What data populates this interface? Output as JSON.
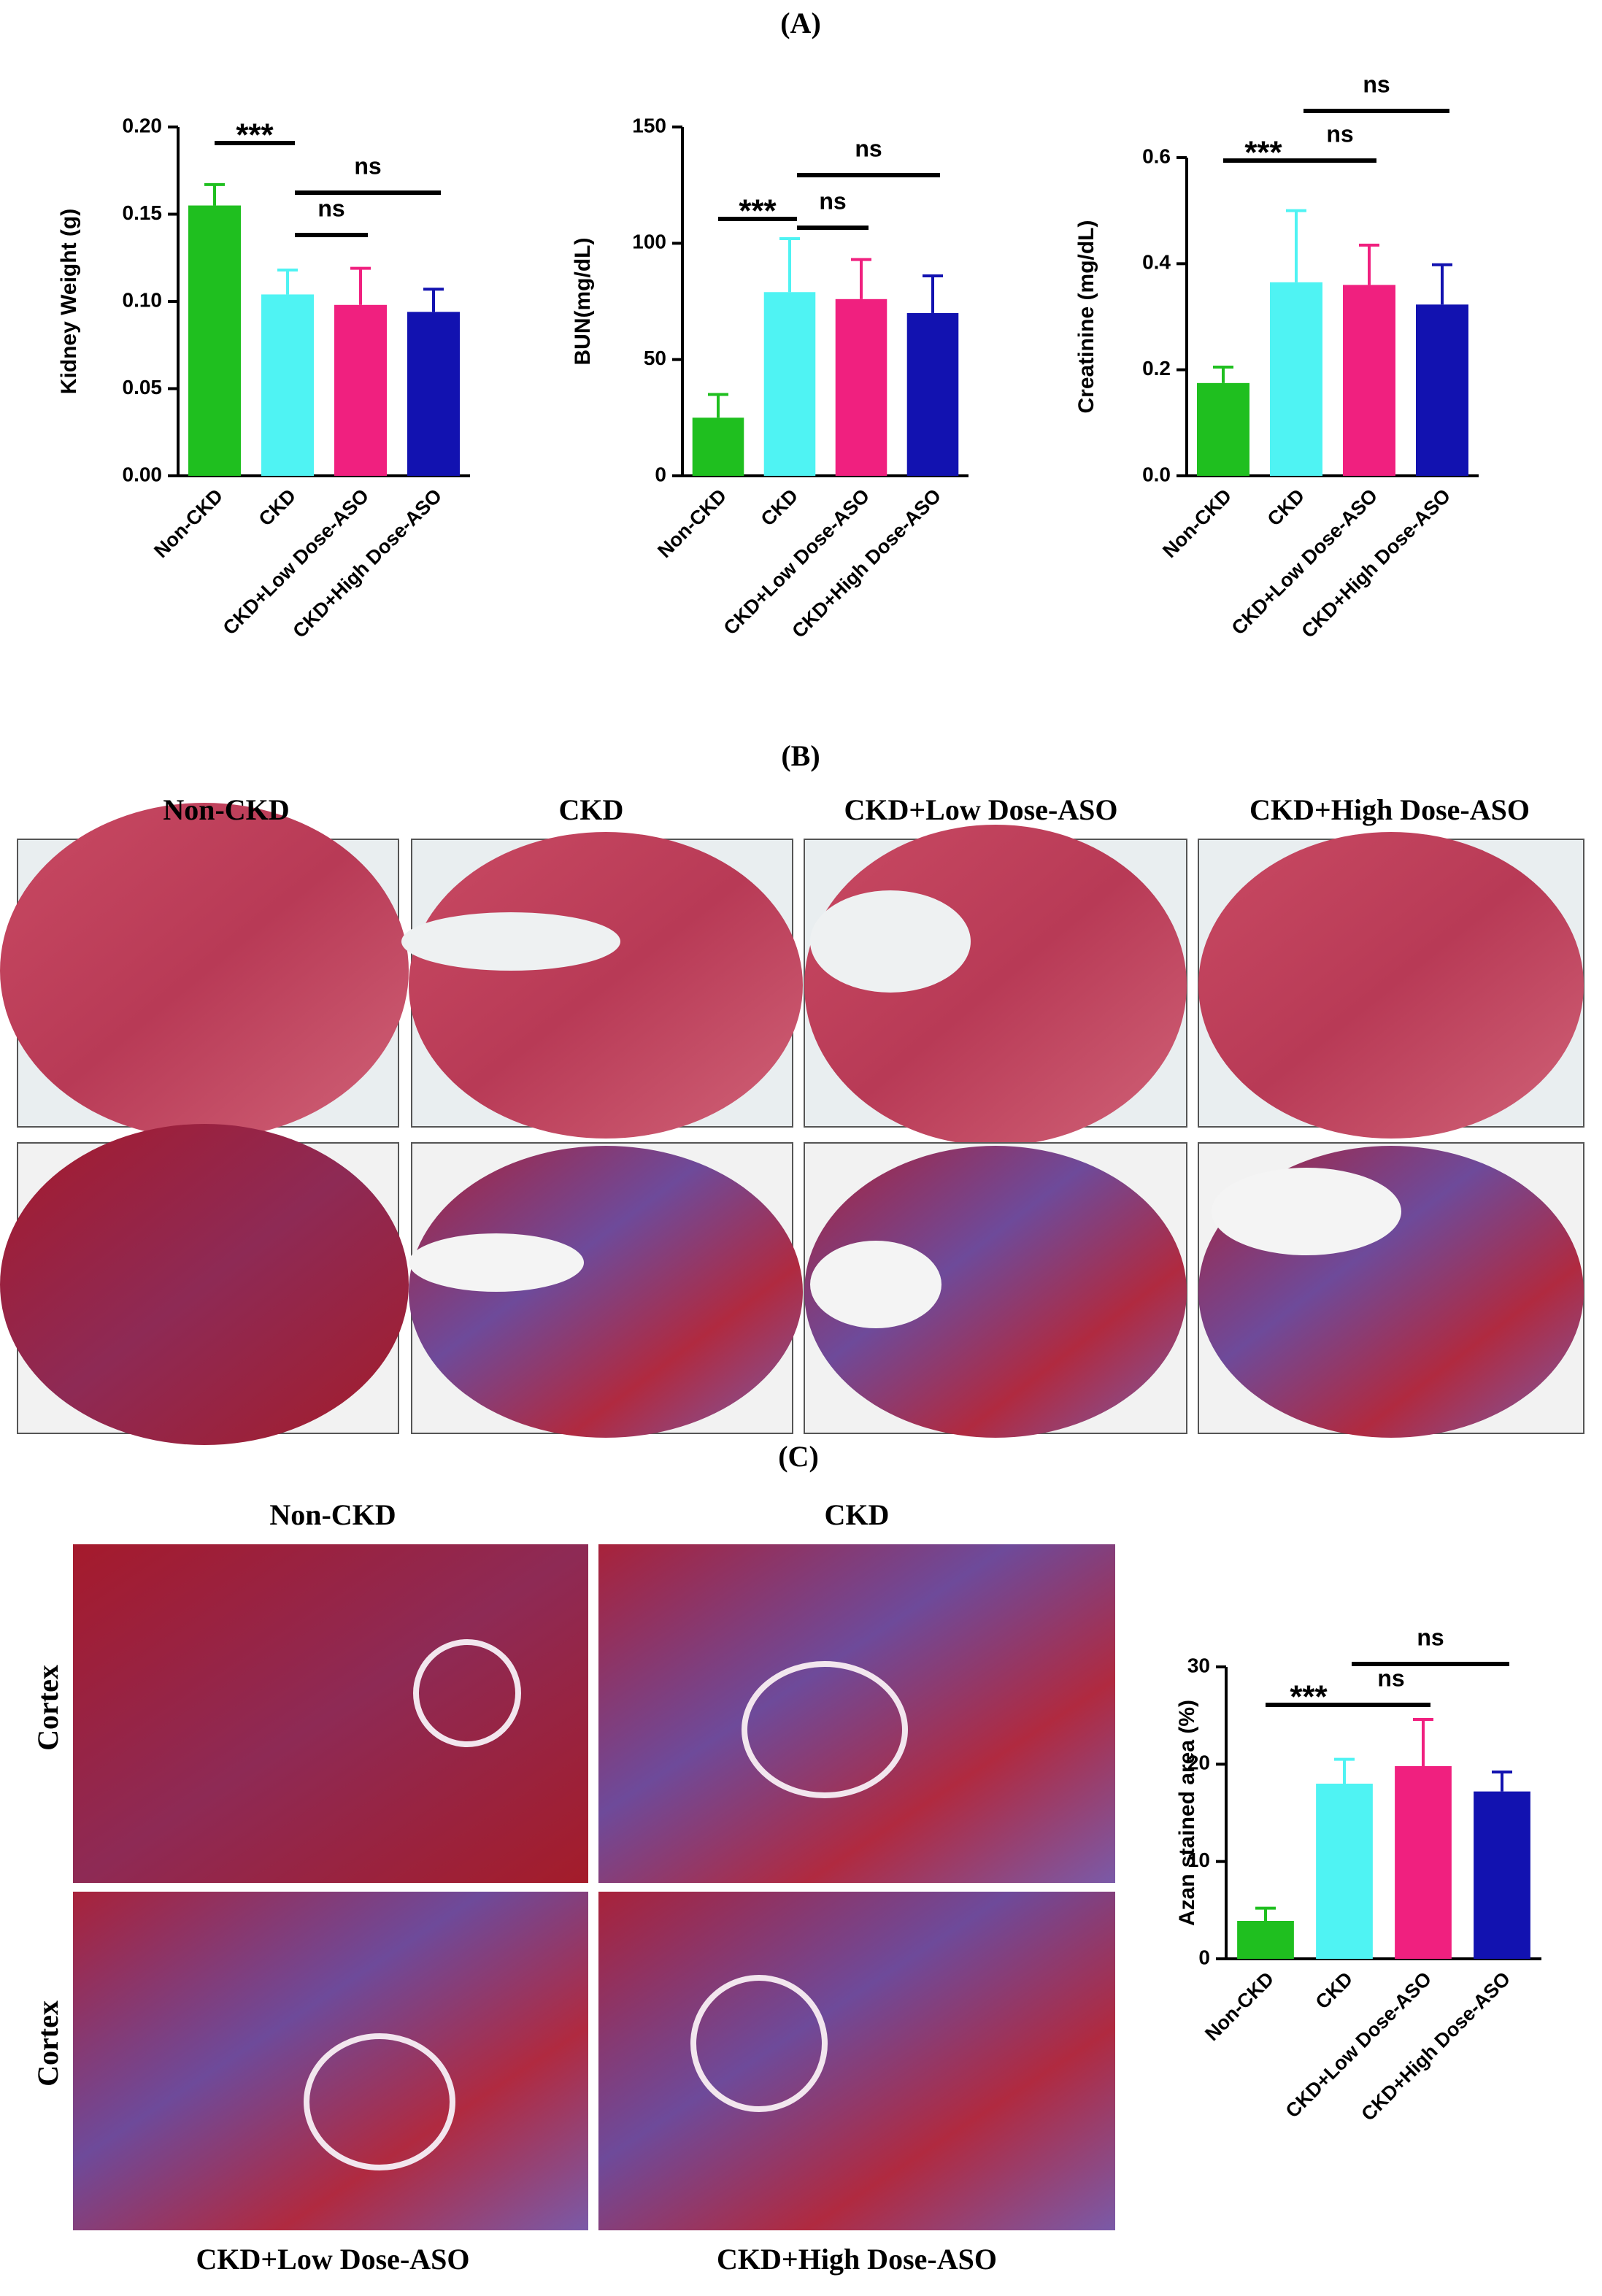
{
  "panel_labels": [
    "(A)",
    "(B)",
    "(C)"
  ],
  "chart_data": [
    {
      "type": "bar",
      "y_label": "Kidney Weight (g)",
      "categories": [
        "Non-CKD",
        "CKD",
        "CKD+Low Dose-ASO",
        "CKD+High Dose-ASO"
      ],
      "values": [
        0.155,
        0.104,
        0.098,
        0.094
      ],
      "errors": [
        0.012,
        0.014,
        0.021,
        0.013
      ],
      "colors": [
        "#1fbf1f",
        "#4ff3f3",
        "#f0207f",
        "#1212b0"
      ],
      "ylim": [
        0,
        0.2
      ],
      "yticks": [
        {
          "value": 0,
          "label": "0.00"
        },
        0.05,
        {
          "value": 0.1,
          "label": "0.10"
        },
        0.15,
        {
          "value": 0.2,
          "label": "0.20"
        }
      ],
      "annotations": [
        {
          "label": "***",
          "from": "Non-CKD",
          "to": "CKD"
        },
        {
          "label": "ns",
          "from": "CKD",
          "to": "CKD+Low Dose-ASO"
        },
        {
          "label": "ns",
          "from": "CKD",
          "to": "CKD+High Dose-ASO"
        }
      ]
    },
    {
      "type": "bar",
      "y_label": "BUN(mg/dL)",
      "categories": [
        "Non-CKD",
        "CKD",
        "CKD+Low Dose-ASO",
        "CKD+High Dose-ASO"
      ],
      "values": [
        25,
        79,
        76,
        70
      ],
      "errors": [
        10,
        23,
        17,
        16
      ],
      "colors": [
        "#1fbf1f",
        "#4ff3f3",
        "#f0207f",
        "#1212b0"
      ],
      "ylim": [
        0,
        150
      ],
      "yticks": [
        0,
        50,
        100,
        150
      ],
      "annotations": [
        {
          "label": "***",
          "from": "Non-CKD",
          "to": "CKD"
        },
        {
          "label": "ns",
          "from": "CKD",
          "to": "CKD+Low Dose-ASO"
        },
        {
          "label": "ns",
          "from": "CKD",
          "to": "CKD+High Dose-ASO"
        }
      ]
    },
    {
      "type": "bar",
      "y_label": "Creatinine (mg/dL)",
      "categories": [
        "Non-CKD",
        "CKD",
        "CKD+Low Dose-ASO",
        "CKD+High Dose-ASO"
      ],
      "values": [
        0.175,
        0.365,
        0.36,
        0.323
      ],
      "errors": [
        0.03,
        0.135,
        0.075,
        0.075
      ],
      "colors": [
        "#1fbf1f",
        "#4ff3f3",
        "#f0207f",
        "#1212b0"
      ],
      "ylim": [
        0,
        0.6
      ],
      "yticks": [
        {
          "value": 0,
          "label": "0.0"
        },
        0.2,
        0.4,
        0.6
      ],
      "annotations": [
        {
          "label": "***",
          "from": "Non-CKD",
          "to": "CKD"
        },
        {
          "label": "ns",
          "from": "CKD",
          "to": "CKD+Low Dose-ASO"
        },
        {
          "label": "ns",
          "from": "CKD",
          "to": "CKD+High Dose-ASO"
        }
      ]
    },
    {
      "type": "bar",
      "y_label": "Azan stained area (%)",
      "categories": [
        "Non-CKD",
        "CKD",
        "CKD+Low Dose-ASO",
        "CKD+High Dose-ASO"
      ],
      "values": [
        3.9,
        18,
        19.8,
        17.2
      ],
      "errors": [
        1.3,
        2.5,
        4.8,
        2
      ],
      "colors": [
        "#1fbf1f",
        "#4ff3f3",
        "#f0207f",
        "#1212b0"
      ],
      "ylim": [
        0,
        30
      ],
      "yticks": [
        0,
        10,
        20,
        30
      ],
      "annotations": [
        {
          "label": "***",
          "from": "Non-CKD",
          "to": "CKD"
        },
        {
          "label": "ns",
          "from": "CKD",
          "to": "CKD+Low Dose-ASO"
        },
        {
          "label": "ns",
          "from": "CKD",
          "to": "CKD+High Dose-ASO"
        }
      ]
    }
  ],
  "histology_b": {
    "columns": [
      "Non-CKD",
      "CKD",
      "CKD+Low Dose-ASO",
      "CKD+High Dose-ASO"
    ]
  },
  "histology_c": {
    "top_columns": [
      "Non-CKD",
      "CKD"
    ],
    "bottom_columns": [
      "CKD+Low Dose-ASO",
      "CKD+High Dose-ASO"
    ],
    "rows": [
      "Cortex",
      "Cortex"
    ]
  }
}
